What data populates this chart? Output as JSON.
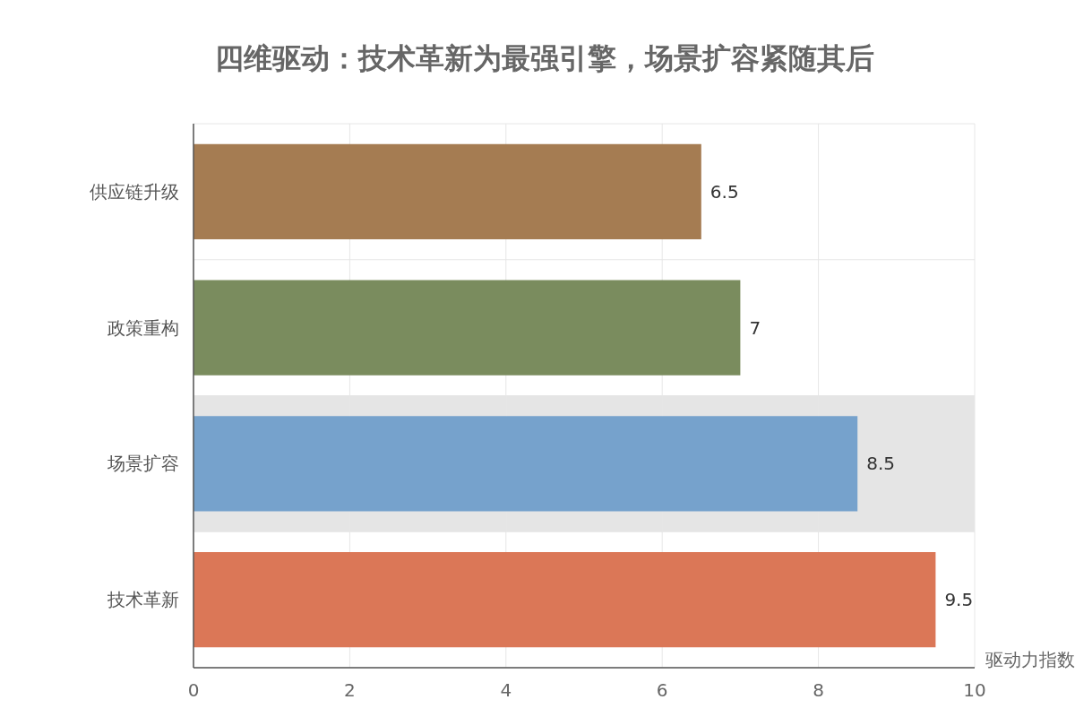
{
  "chart_data": {
    "type": "bar",
    "orientation": "horizontal",
    "title": "四维驱动：技术革新为最强引擎，场景扩容紧随其后",
    "xlabel": "驱动力指数",
    "categories": [
      "供应链升级",
      "政策重构",
      "场景扩容",
      "技术革新"
    ],
    "values": [
      6.5,
      7,
      8.5,
      9.5
    ],
    "colors": [
      "#a57c52",
      "#7a8c5e",
      "#76a2cc",
      "#db7757"
    ],
    "xlim": [
      0,
      10
    ],
    "xticks": [
      0,
      2,
      4,
      6,
      8,
      10
    ],
    "grid": true,
    "data_labels": true,
    "bands": [
      {
        "axis": "y",
        "from": "场景扩容",
        "to": "场景扩容",
        "color": "#e5e5e5"
      }
    ]
  }
}
